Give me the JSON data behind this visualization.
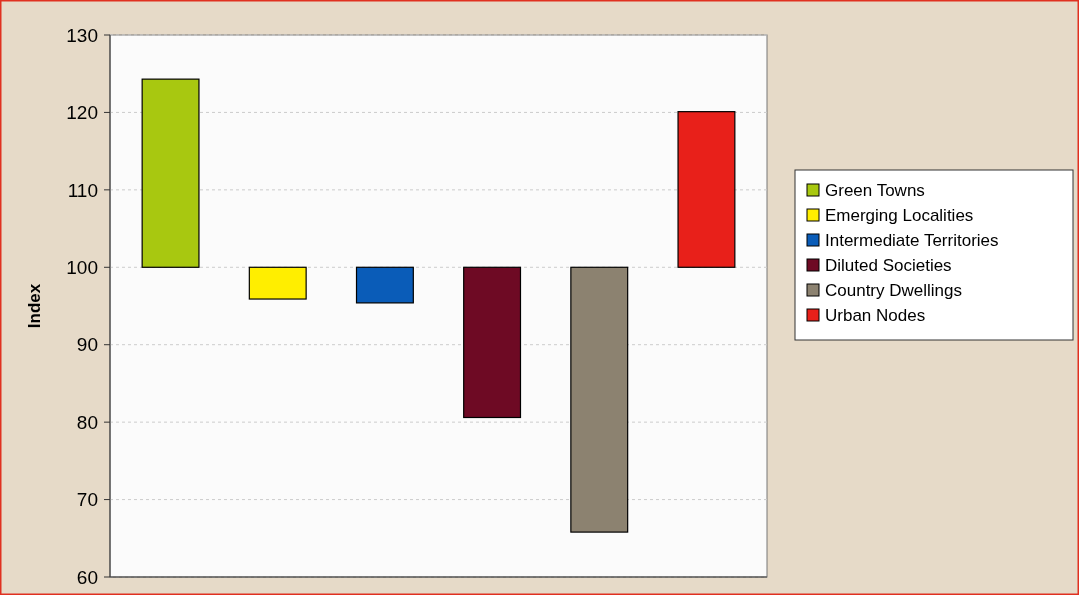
{
  "chart_data": {
    "type": "bar",
    "ylabel": "Index",
    "categories": [
      null,
      null,
      null,
      null,
      null,
      null
    ],
    "series": [
      {
        "name": "Green Towns",
        "color": "#a8c810",
        "values": [
          24.3,
          null,
          null,
          null,
          null,
          null
        ],
        "base": [
          100,
          null,
          null,
          null,
          null,
          null
        ]
      },
      {
        "name": "Emerging Localities",
        "color": "#ffee00",
        "values": [
          null,
          -4.1,
          null,
          null,
          null,
          null
        ],
        "base": [
          null,
          100,
          null,
          null,
          null,
          null
        ]
      },
      {
        "name": "Intermediate Territories",
        "color": "#0a5cb8",
        "values": [
          null,
          null,
          -4.6,
          null,
          null,
          null
        ],
        "base": [
          null,
          null,
          100,
          null,
          null,
          null
        ]
      },
      {
        "name": "Diluted Societies",
        "color": "#6e0a24",
        "values": [
          null,
          null,
          null,
          -19.4,
          null,
          null
        ],
        "base": [
          null,
          null,
          null,
          100,
          null,
          null
        ]
      },
      {
        "name": "Country Dwellings",
        "color": "#8c8270",
        "values": [
          null,
          null,
          null,
          null,
          -34.2,
          null
        ],
        "base": [
          null,
          null,
          null,
          null,
          100,
          null
        ]
      },
      {
        "name": "Urban Nodes",
        "color": "#e8201a",
        "values": [
          null,
          null,
          null,
          null,
          null,
          20.1
        ],
        "base": [
          null,
          null,
          null,
          null,
          null,
          100
        ]
      }
    ],
    "ylim": [
      60,
      130
    ],
    "yticks": [
      60,
      70,
      80,
      90,
      100,
      110,
      120,
      130
    ],
    "grid": "y",
    "legend": "right"
  }
}
